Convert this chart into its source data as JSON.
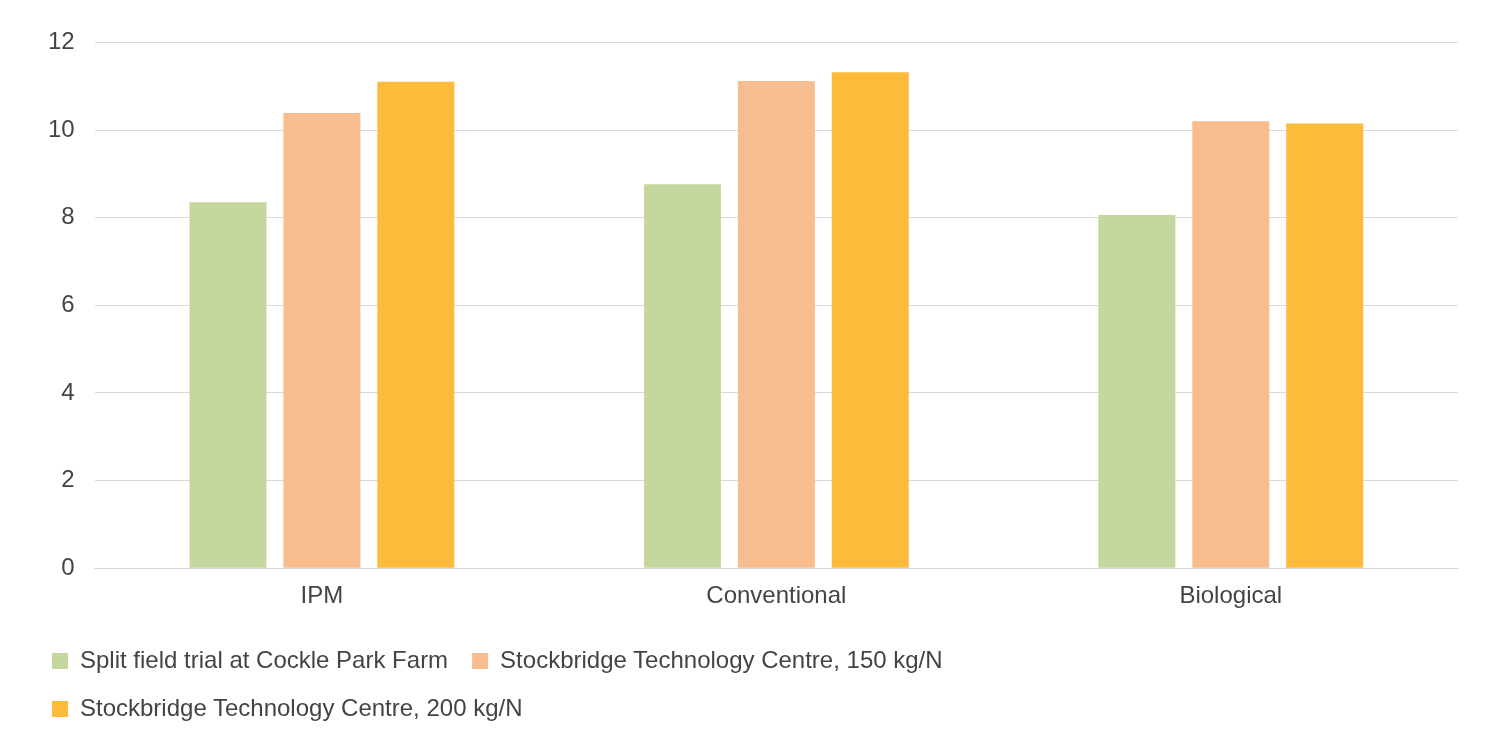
{
  "chart_data": {
    "type": "bar",
    "categories": [
      "IPM",
      "Conventional",
      "Biological"
    ],
    "series": [
      {
        "name": "Split field trial at Cockle Park Farm",
        "color": "#c5d79e",
        "values": [
          8.35,
          8.76,
          8.06
        ]
      },
      {
        "name": "Stockbridge Technology Centre, 150 kg/N",
        "color": "#f8bd8e",
        "values": [
          10.39,
          11.12,
          10.2
        ]
      },
      {
        "name": "Stockbridge Technology Centre, 200 kg/N",
        "color": "#fdbb3b",
        "values": [
          11.1,
          11.32,
          10.15
        ]
      }
    ],
    "ylim": [
      0,
      12
    ],
    "yticks": [
      0,
      2,
      4,
      6,
      8,
      10,
      12
    ],
    "grid": "y",
    "legend": "bottom"
  }
}
